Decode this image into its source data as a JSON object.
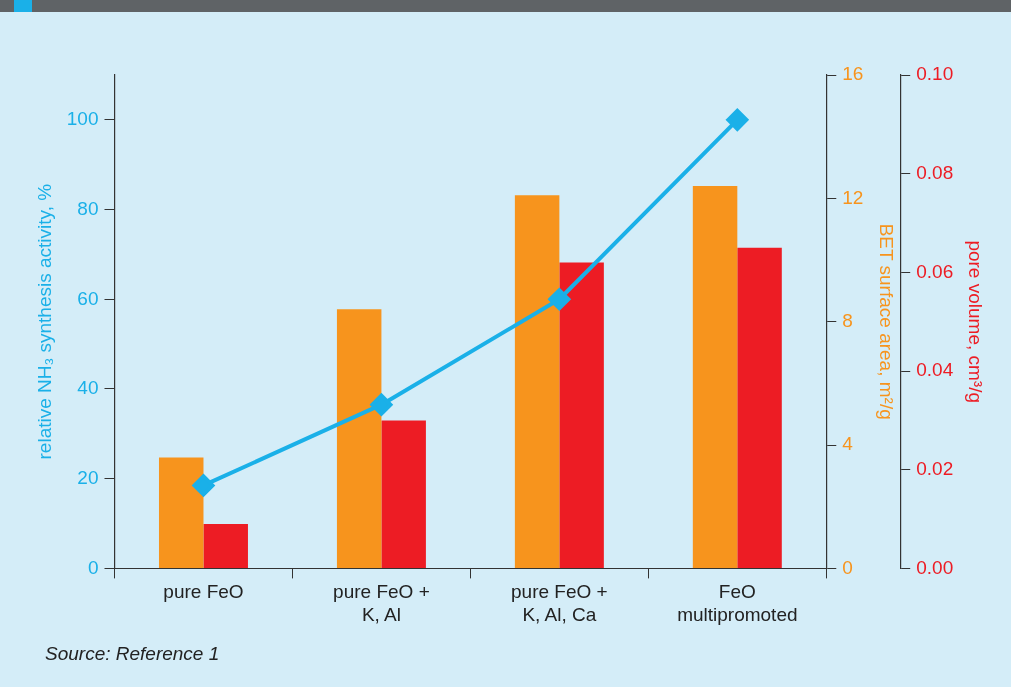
{
  "chart_data": {
    "type": "bar",
    "ylabel": "relative NH₃ synthesis activity, %",
    "y2label": "BET surface area, m²/g",
    "y3label": "pore volume, cm³/g",
    "categories": [
      "pure FeO",
      "pure FeO +\nK, Al",
      "pure FeO +\nK, Al, Ca",
      "FeO\nmultipromoted"
    ],
    "series": [
      {
        "axis": "y2",
        "color": "#f7941d",
        "values": [
          3.6,
          8.4,
          12.1,
          12.4
        ]
      },
      {
        "axis": "y3",
        "color": "#ed1c24",
        "values": [
          0.009,
          0.03,
          0.062,
          0.065
        ]
      },
      {
        "type": "line",
        "axis": "y",
        "color": "#1ab0e8",
        "values": [
          18.5,
          36.5,
          60,
          100
        ],
        "marker": "diamond",
        "line_style": "solid"
      }
    ],
    "ylim": [
      0,
      110
    ],
    "yticks": [
      0,
      20,
      40,
      60,
      80,
      100
    ],
    "y2lim": [
      0,
      16
    ],
    "y2ticks": [
      0,
      4,
      8,
      12,
      16
    ],
    "y3lim": [
      0,
      0.1
    ],
    "y3ticks": [
      {
        "value": 0,
        "label": "0.00"
      },
      {
        "value": 0.02,
        "label": "0.02"
      },
      {
        "value": 0.04,
        "label": "0.04"
      },
      {
        "value": 0.06,
        "label": "0.06"
      },
      {
        "value": 0.08,
        "label": "0.08"
      },
      {
        "value": 0.1,
        "label": "0.10"
      }
    ],
    "grid": false,
    "legend": false,
    "annotations": [
      "Source: Reference 1"
    ]
  }
}
